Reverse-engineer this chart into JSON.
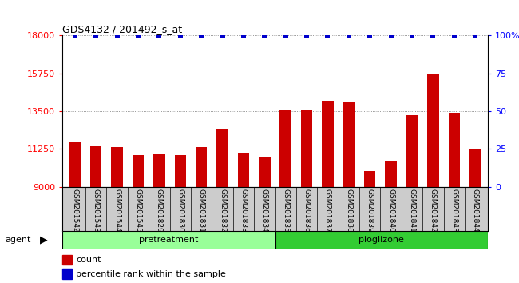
{
  "title": "GDS4132 / 201492_s_at",
  "categories": [
    "GSM201542",
    "GSM201543",
    "GSM201544",
    "GSM201545",
    "GSM201829",
    "GSM201830",
    "GSM201831",
    "GSM201832",
    "GSM201833",
    "GSM201834",
    "GSM201835",
    "GSM201836",
    "GSM201837",
    "GSM201838",
    "GSM201839",
    "GSM201840",
    "GSM201841",
    "GSM201842",
    "GSM201843",
    "GSM201844"
  ],
  "bar_values": [
    11700,
    11400,
    11350,
    10900,
    10950,
    10900,
    11350,
    12450,
    11050,
    10800,
    13550,
    13600,
    14100,
    14050,
    9950,
    10500,
    13250,
    15750,
    13400,
    11250
  ],
  "percentile_values": [
    100,
    100,
    100,
    100,
    100,
    100,
    100,
    100,
    100,
    100,
    100,
    100,
    100,
    100,
    100,
    100,
    100,
    100,
    100,
    100
  ],
  "bar_color": "#cc0000",
  "percentile_color": "#0000cc",
  "ylim_left": [
    9000,
    18000
  ],
  "ylim_right": [
    0,
    100
  ],
  "yticks_left": [
    9000,
    11250,
    13500,
    15750,
    18000
  ],
  "yticks_right": [
    0,
    25,
    50,
    75,
    100
  ],
  "group1_label": "pretreatment",
  "group1_count": 10,
  "group2_label": "pioglizone",
  "group2_count": 10,
  "legend_count_label": "count",
  "legend_pct_label": "percentile rank within the sample",
  "agent_label": "agent",
  "background_color": "#ffffff",
  "group1_color": "#99ff99",
  "group2_color": "#33cc33",
  "tick_area_color": "#cccccc",
  "dotted_grid_color": "#777777"
}
